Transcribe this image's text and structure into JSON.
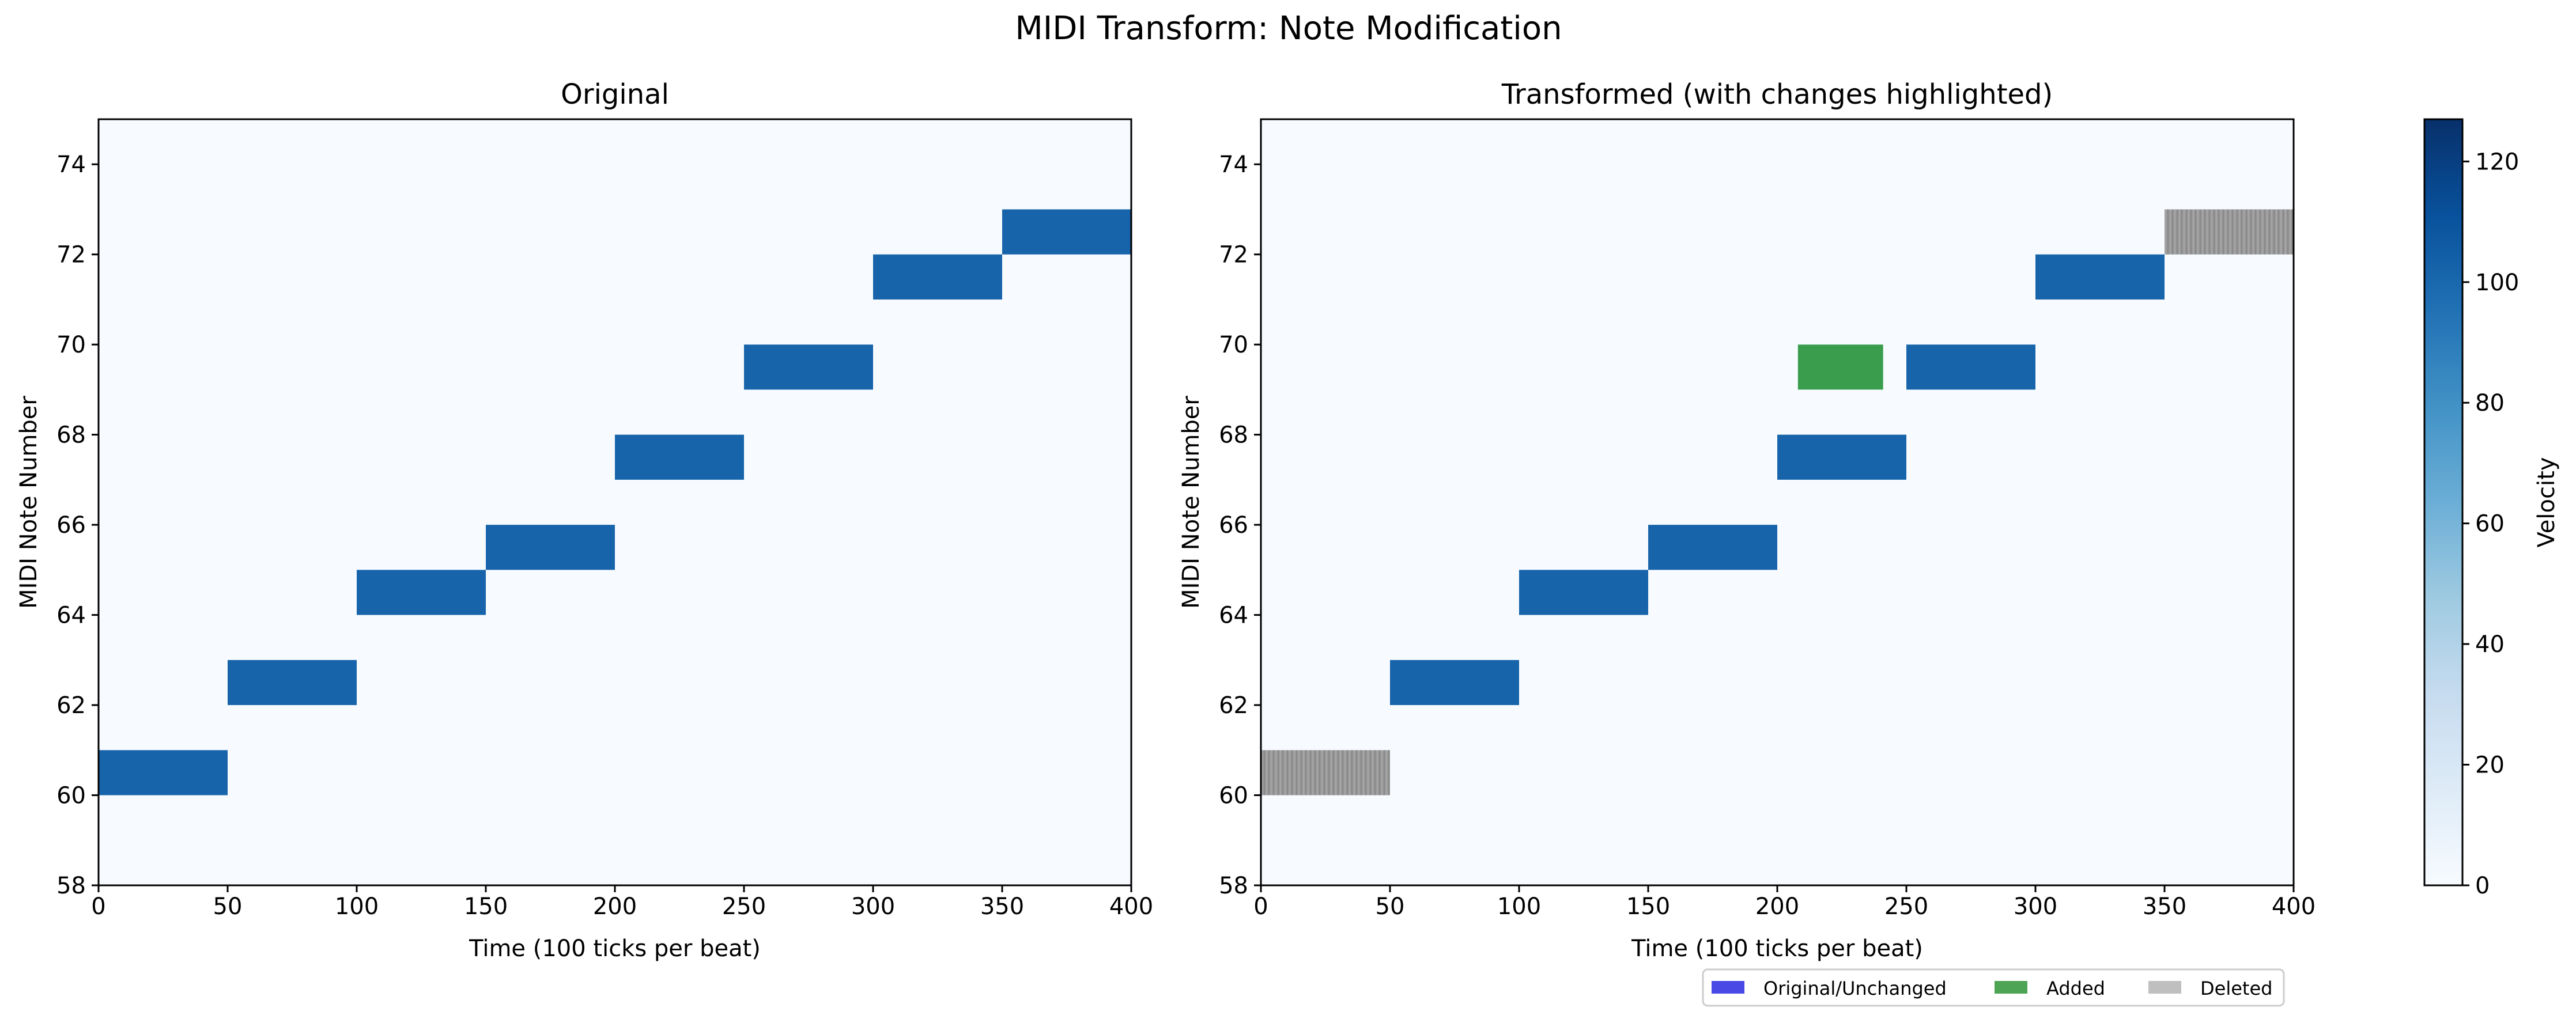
{
  "figure": {
    "title": "MIDI Transform: Note Modification"
  },
  "colors": {
    "background_fill": "#f7fbff",
    "note": "#1764ab",
    "added": "#3a9d4e",
    "deleted": "#999999",
    "legend_original_swatch": "#4949e6",
    "legend_added_swatch": "#4ea455",
    "legend_deleted_swatch": "#bfbfbf",
    "colormap": [
      "#f7fbff",
      "#deebf7",
      "#c6dbef",
      "#9ecae1",
      "#6baed6",
      "#4292c6",
      "#2171b5",
      "#08519c",
      "#08306b"
    ]
  },
  "chart_data": [
    {
      "type": "heatmap",
      "title": "Original",
      "xlabel": "Time (100 ticks per beat)",
      "ylabel": "MIDI Note Number",
      "xlim": [
        0,
        400
      ],
      "ylim": [
        58,
        75
      ],
      "xticks": [
        "0",
        "50",
        "100",
        "150",
        "200",
        "250",
        "300",
        "350",
        "400"
      ],
      "yticks": [
        "58",
        "60",
        "62",
        "64",
        "66",
        "68",
        "70",
        "72",
        "74"
      ],
      "notes": [
        {
          "pitch": 60,
          "start": 0,
          "end": 50,
          "velocity": 100,
          "status": "original"
        },
        {
          "pitch": 62,
          "start": 50,
          "end": 100,
          "velocity": 100,
          "status": "original"
        },
        {
          "pitch": 64,
          "start": 100,
          "end": 150,
          "velocity": 100,
          "status": "original"
        },
        {
          "pitch": 65,
          "start": 150,
          "end": 200,
          "velocity": 100,
          "status": "original"
        },
        {
          "pitch": 67,
          "start": 200,
          "end": 250,
          "velocity": 100,
          "status": "original"
        },
        {
          "pitch": 69,
          "start": 250,
          "end": 300,
          "velocity": 100,
          "status": "original"
        },
        {
          "pitch": 71,
          "start": 300,
          "end": 350,
          "velocity": 100,
          "status": "original"
        },
        {
          "pitch": 72,
          "start": 350,
          "end": 400,
          "velocity": 100,
          "status": "original"
        }
      ]
    },
    {
      "type": "heatmap",
      "title": "Transformed (with changes highlighted)",
      "xlabel": "Time (100 ticks per beat)",
      "ylabel": "MIDI Note Number",
      "xlim": [
        0,
        400
      ],
      "ylim": [
        58,
        75
      ],
      "xticks": [
        "0",
        "50",
        "100",
        "150",
        "200",
        "250",
        "300",
        "350",
        "400"
      ],
      "yticks": [
        "58",
        "60",
        "62",
        "64",
        "66",
        "68",
        "70",
        "72",
        "74"
      ],
      "notes": [
        {
          "pitch": 60,
          "start": 0,
          "end": 50,
          "velocity": 100,
          "status": "deleted"
        },
        {
          "pitch": 62,
          "start": 50,
          "end": 100,
          "velocity": 100,
          "status": "original"
        },
        {
          "pitch": 64,
          "start": 100,
          "end": 150,
          "velocity": 100,
          "status": "original"
        },
        {
          "pitch": 65,
          "start": 150,
          "end": 200,
          "velocity": 100,
          "status": "original"
        },
        {
          "pitch": 67,
          "start": 200,
          "end": 250,
          "velocity": 100,
          "status": "original"
        },
        {
          "pitch": 69,
          "start": 208,
          "end": 241,
          "velocity": 100,
          "status": "added"
        },
        {
          "pitch": 69,
          "start": 250,
          "end": 300,
          "velocity": 100,
          "status": "original"
        },
        {
          "pitch": 71,
          "start": 300,
          "end": 350,
          "velocity": 100,
          "status": "original"
        },
        {
          "pitch": 72,
          "start": 350,
          "end": 400,
          "velocity": 100,
          "status": "deleted"
        }
      ],
      "legend": {
        "placement": "bottom-right",
        "entries": [
          "Original/Unchanged",
          "Added",
          "Deleted"
        ]
      }
    }
  ],
  "colorbar": {
    "label": "Velocity",
    "range": [
      0,
      127
    ],
    "ticks": [
      "0",
      "20",
      "40",
      "60",
      "80",
      "100",
      "120"
    ]
  }
}
